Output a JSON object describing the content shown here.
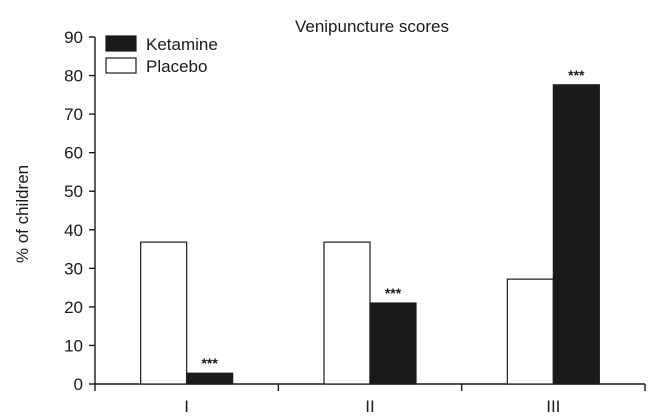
{
  "chart_data": {
    "type": "bar",
    "title": "Venipuncture scores",
    "xlabel": "",
    "ylabel": "% of children",
    "ylim": [
      0,
      90
    ],
    "yticks": [
      0,
      10,
      20,
      30,
      40,
      50,
      60,
      70,
      80,
      90
    ],
    "categories": [
      "I",
      "II",
      "III"
    ],
    "legend_position": "top-left",
    "series": [
      {
        "name": "Placebo",
        "color": "#ffffff",
        "values": [
          36.8,
          36.8,
          27.2
        ],
        "annotations": [
          "",
          "",
          ""
        ]
      },
      {
        "name": "Ketamine",
        "color": "#1a1a1a",
        "values": [
          2.8,
          21.0,
          77.6
        ],
        "annotations": [
          "***",
          "***",
          "***"
        ]
      }
    ],
    "legend_order": [
      "Ketamine",
      "Placebo"
    ]
  }
}
